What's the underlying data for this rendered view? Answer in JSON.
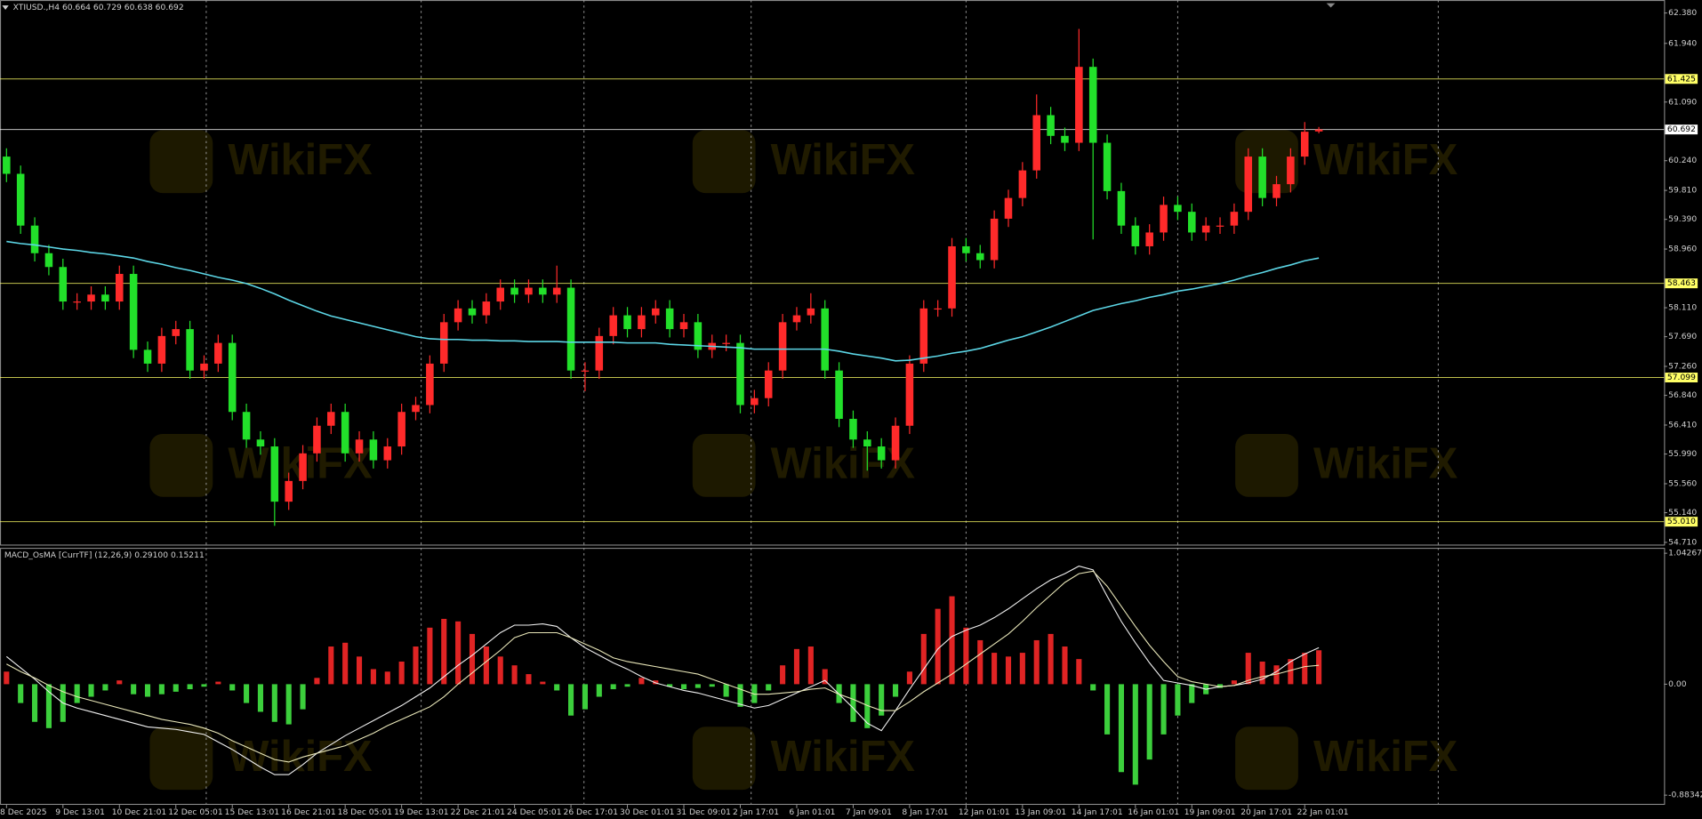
{
  "watermark": "WikiFX",
  "chart_data": [
    {
      "type": "candlestick",
      "title": "XTIUSD.,H4  60.664 60.729 60.638 60.692",
      "up_color": "#ff2a2a",
      "down_color": "#22e02a",
      "categories": [
        "8 Dec 2025",
        null,
        null,
        null,
        "9 Dec 13:01",
        null,
        null,
        null,
        "10 Dec 21:01",
        null,
        null,
        null,
        "12 Dec 05:01",
        null,
        null,
        null,
        "15 Dec 13:01",
        null,
        null,
        null,
        "16 Dec 21:01",
        null,
        null,
        null,
        "18 Dec 05:01",
        null,
        null,
        null,
        "19 Dec 13:01",
        null,
        null,
        null,
        "22 Dec 21:01",
        null,
        null,
        null,
        "24 Dec 05:01",
        null,
        null,
        null,
        "26 Dec 17:01",
        null,
        null,
        null,
        "30 Dec 01:01",
        null,
        null,
        null,
        "31 Dec 09:01",
        null,
        null,
        null,
        "2 Jan 17:01",
        null,
        null,
        null,
        "6 Jan 01:01",
        null,
        null,
        null,
        "7 Jan 09:01",
        null,
        null,
        null,
        "8 Jan 17:01",
        null,
        null,
        null,
        "12 Jan 01:01",
        null,
        null,
        null,
        "13 Jan 09:01",
        null,
        null,
        null,
        "14 Jan 17:01",
        null,
        null,
        null,
        "16 Jan 01:01",
        null,
        null,
        null,
        "19 Jan 09:01",
        null,
        null,
        null,
        "20 Jan 17:01",
        null,
        null,
        null,
        "22 Jan 01:01",
        null
      ],
      "open": [
        60.3,
        60.05,
        59.3,
        58.9,
        58.7,
        58.2,
        58.2,
        58.3,
        58.2,
        58.6,
        57.5,
        57.3,
        57.7,
        57.8,
        57.2,
        57.3,
        57.6,
        56.6,
        56.2,
        56.1,
        55.3,
        55.6,
        56.0,
        56.4,
        56.6,
        56.0,
        56.2,
        55.9,
        56.1,
        56.6,
        56.7,
        57.3,
        57.9,
        58.1,
        58.0,
        58.2,
        58.4,
        58.3,
        58.4,
        58.3,
        58.4,
        57.2,
        57.2,
        57.7,
        58.0,
        57.8,
        58.0,
        58.1,
        57.8,
        57.9,
        57.5,
        57.6,
        57.6,
        56.7,
        56.8,
        57.2,
        57.9,
        58.0,
        58.1,
        57.2,
        56.5,
        56.2,
        56.1,
        55.9,
        56.4,
        57.3,
        58.1,
        58.1,
        59.0,
        58.9,
        58.8,
        59.4,
        59.7,
        60.1,
        60.9,
        60.6,
        60.5,
        61.6,
        60.5,
        59.8,
        59.3,
        59.0,
        59.2,
        59.6,
        59.5,
        59.2,
        59.3,
        59.3,
        59.5,
        60.3,
        59.7,
        59.9,
        60.3,
        60.664
      ],
      "high": [
        60.42,
        60.17,
        59.42,
        59.02,
        58.82,
        58.32,
        58.42,
        58.42,
        58.72,
        58.72,
        57.62,
        57.82,
        57.92,
        57.92,
        57.42,
        57.72,
        57.72,
        56.72,
        56.32,
        56.22,
        55.72,
        56.12,
        56.52,
        56.72,
        56.72,
        56.32,
        56.32,
        56.22,
        56.72,
        56.82,
        57.42,
        58.02,
        58.22,
        58.22,
        58.32,
        58.52,
        58.52,
        58.52,
        58.52,
        58.72,
        58.52,
        57.32,
        57.82,
        58.12,
        58.12,
        58.12,
        58.22,
        58.22,
        58.02,
        58.02,
        57.72,
        57.72,
        57.72,
        56.92,
        57.32,
        58.02,
        58.12,
        58.32,
        58.22,
        57.32,
        56.62,
        56.32,
        56.22,
        56.52,
        57.42,
        58.22,
        58.22,
        59.12,
        59.12,
        59.02,
        59.52,
        59.82,
        60.22,
        61.2,
        61.02,
        60.72,
        62.15,
        61.72,
        60.62,
        59.92,
        59.42,
        59.32,
        59.72,
        59.72,
        59.62,
        59.42,
        59.42,
        59.62,
        60.42,
        60.42,
        60.02,
        60.42,
        60.8,
        60.729
      ],
      "low": [
        59.93,
        59.18,
        58.78,
        58.58,
        58.08,
        58.08,
        58.08,
        58.08,
        58.08,
        57.38,
        57.18,
        57.18,
        57.58,
        57.08,
        57.08,
        57.18,
        56.48,
        56.08,
        55.98,
        54.95,
        55.18,
        55.48,
        55.88,
        56.28,
        55.88,
        55.88,
        55.78,
        55.78,
        55.98,
        56.48,
        56.58,
        57.18,
        57.78,
        57.88,
        57.88,
        58.08,
        58.18,
        58.18,
        58.18,
        58.18,
        57.08,
        56.9,
        57.08,
        57.58,
        57.68,
        57.68,
        57.88,
        57.68,
        57.68,
        57.38,
        57.38,
        57.48,
        56.58,
        56.58,
        56.68,
        57.08,
        57.78,
        57.88,
        57.08,
        56.38,
        56.08,
        55.75,
        55.78,
        55.78,
        56.28,
        57.18,
        57.98,
        57.98,
        58.78,
        58.68,
        58.68,
        59.28,
        59.58,
        59.98,
        60.48,
        60.38,
        60.38,
        59.1,
        59.68,
        59.18,
        58.88,
        58.88,
        59.08,
        59.38,
        59.08,
        59.08,
        59.18,
        59.18,
        59.38,
        59.58,
        59.58,
        59.78,
        60.18,
        60.638
      ],
      "close": [
        60.05,
        59.3,
        58.9,
        58.7,
        58.2,
        58.2,
        58.3,
        58.2,
        58.6,
        57.5,
        57.3,
        57.7,
        57.8,
        57.2,
        57.3,
        57.6,
        56.6,
        56.2,
        56.1,
        55.3,
        55.6,
        56.0,
        56.4,
        56.6,
        56.0,
        56.2,
        55.9,
        56.1,
        56.6,
        56.7,
        57.3,
        57.9,
        58.1,
        58.0,
        58.2,
        58.4,
        58.3,
        58.4,
        58.3,
        58.4,
        57.2,
        57.2,
        57.7,
        58.0,
        57.8,
        58.0,
        58.1,
        57.8,
        57.9,
        57.5,
        57.6,
        57.6,
        56.7,
        56.8,
        57.2,
        57.9,
        58.0,
        58.1,
        57.2,
        56.5,
        56.2,
        56.1,
        55.9,
        56.4,
        57.3,
        58.1,
        58.1,
        59.0,
        58.9,
        58.8,
        59.4,
        59.7,
        60.1,
        60.9,
        60.6,
        60.5,
        61.6,
        60.5,
        59.8,
        59.3,
        59.0,
        59.2,
        59.6,
        59.5,
        59.2,
        59.3,
        59.3,
        59.5,
        60.3,
        59.7,
        59.9,
        60.3,
        60.66,
        60.692
      ],
      "overlay": {
        "color": "#5cd6e6",
        "values": [
          59.07,
          59.04,
          59.02,
          58.99,
          58.96,
          58.94,
          58.91,
          58.89,
          58.86,
          58.83,
          58.78,
          58.74,
          58.69,
          58.65,
          58.6,
          58.55,
          58.51,
          58.46,
          58.39,
          58.31,
          58.22,
          58.14,
          58.06,
          57.99,
          57.94,
          57.89,
          57.84,
          57.79,
          57.74,
          57.69,
          57.66,
          57.65,
          57.65,
          57.64,
          57.64,
          57.63,
          57.63,
          57.62,
          57.62,
          57.62,
          57.61,
          57.61,
          57.61,
          57.61,
          57.6,
          57.6,
          57.6,
          57.58,
          57.57,
          57.56,
          57.55,
          57.54,
          57.53,
          57.51,
          57.51,
          57.51,
          57.51,
          57.51,
          57.51,
          57.48,
          57.44,
          57.41,
          57.38,
          57.34,
          57.35,
          57.38,
          57.41,
          57.45,
          57.48,
          57.52,
          57.58,
          57.64,
          57.69,
          57.76,
          57.83,
          57.91,
          57.99,
          58.07,
          58.12,
          58.17,
          58.21,
          58.26,
          58.3,
          58.35,
          58.38,
          58.42,
          58.46,
          58.51,
          58.57,
          58.62,
          58.68,
          58.73,
          58.79,
          58.83
        ]
      },
      "levels": [
        {
          "value": 61.425,
          "label": "61.425",
          "color": "#ffff66"
        },
        {
          "value": 60.692,
          "label": "60.692",
          "color": "#ffffff"
        },
        {
          "value": 58.463,
          "label": "58.463",
          "color": "#ffff66"
        },
        {
          "value": 57.099,
          "label": "57.099",
          "color": "#ffff66"
        },
        {
          "value": 55.01,
          "label": "55.010",
          "color": "#ffff66"
        }
      ],
      "ylim": [
        54.71,
        62.38
      ],
      "yticks": [
        {
          "value": 62.38,
          "label": "62.380"
        },
        {
          "value": 61.94,
          "label": "61.940"
        },
        {
          "value": 61.09,
          "label": "61.090"
        },
        {
          "value": 60.24,
          "label": "60.240"
        },
        {
          "value": 59.81,
          "label": "59.810"
        },
        {
          "value": 59.39,
          "label": "59.390"
        },
        {
          "value": 58.96,
          "label": "58.960"
        },
        {
          "value": 58.11,
          "label": "58.110"
        },
        {
          "value": 57.69,
          "label": "57.690"
        },
        {
          "value": 57.26,
          "label": "57.260"
        },
        {
          "value": 56.84,
          "label": "56.840"
        },
        {
          "value": 56.41,
          "label": "56.410"
        },
        {
          "value": 55.99,
          "label": "55.990"
        },
        {
          "value": 55.56,
          "label": "55.560"
        },
        {
          "value": 55.14,
          "label": "55.140"
        },
        {
          "value": 54.71,
          "label": "54.710"
        }
      ]
    },
    {
      "type": "macd",
      "title": "MACD_OsMA [CurrTF] (12,26,9) 0.29100 0.15211",
      "histogram": {
        "up_color": "#e02424",
        "down_color": "#3ccf3c",
        "values": [
          0.1,
          -0.15,
          -0.3,
          -0.35,
          -0.3,
          -0.15,
          -0.1,
          -0.05,
          0.03,
          -0.08,
          -0.1,
          -0.08,
          -0.06,
          -0.04,
          -0.02,
          0.02,
          -0.05,
          -0.15,
          -0.22,
          -0.3,
          -0.32,
          -0.2,
          0.05,
          0.3,
          0.33,
          0.22,
          0.12,
          0.1,
          0.18,
          0.3,
          0.45,
          0.52,
          0.5,
          0.4,
          0.3,
          0.22,
          0.15,
          0.08,
          0.02,
          -0.05,
          -0.25,
          -0.2,
          -0.1,
          -0.04,
          -0.02,
          0.05,
          0.03,
          -0.02,
          -0.04,
          -0.03,
          -0.02,
          -0.1,
          -0.18,
          -0.15,
          -0.05,
          0.15,
          0.28,
          0.3,
          0.12,
          -0.15,
          -0.3,
          -0.35,
          -0.25,
          -0.1,
          0.1,
          0.4,
          0.6,
          0.7,
          0.45,
          0.35,
          0.25,
          0.22,
          0.25,
          0.35,
          0.4,
          0.3,
          0.2,
          -0.05,
          -0.4,
          -0.7,
          -0.8,
          -0.6,
          -0.4,
          -0.25,
          -0.15,
          -0.08,
          -0.03,
          0.03,
          0.25,
          0.18,
          0.15,
          0.2,
          0.25,
          0.27
        ]
      },
      "lines": [
        {
          "color": "#f0f0f0",
          "values": [
            0.22,
            0.13,
            0.04,
            -0.06,
            -0.15,
            -0.19,
            -0.22,
            -0.25,
            -0.28,
            -0.31,
            -0.34,
            -0.35,
            -0.36,
            -0.38,
            -0.4,
            -0.46,
            -0.52,
            -0.59,
            -0.66,
            -0.72,
            -0.72,
            -0.64,
            -0.55,
            -0.48,
            -0.41,
            -0.35,
            -0.29,
            -0.23,
            -0.17,
            -0.1,
            -0.03,
            0.06,
            0.15,
            0.23,
            0.32,
            0.41,
            0.47,
            0.47,
            0.48,
            0.46,
            0.37,
            0.29,
            0.23,
            0.17,
            0.12,
            0.06,
            0.01,
            -0.02,
            -0.05,
            -0.07,
            -0.1,
            -0.13,
            -0.16,
            -0.19,
            -0.17,
            -0.12,
            -0.07,
            -0.02,
            0.03,
            -0.08,
            -0.19,
            -0.31,
            -0.37,
            -0.21,
            -0.04,
            0.12,
            0.28,
            0.38,
            0.43,
            0.47,
            0.53,
            0.6,
            0.68,
            0.76,
            0.83,
            0.88,
            0.94,
            0.91,
            0.7,
            0.5,
            0.33,
            0.17,
            0.03,
            0.01,
            -0.01,
            -0.04,
            -0.02,
            -0.01,
            0.01,
            0.04,
            0.1,
            0.18,
            0.24,
            0.29
          ]
        },
        {
          "color": "#e8e6b8",
          "values": [
            0.16,
            0.1,
            0.05,
            -0.01,
            -0.06,
            -0.1,
            -0.13,
            -0.16,
            -0.19,
            -0.22,
            -0.25,
            -0.28,
            -0.3,
            -0.32,
            -0.35,
            -0.39,
            -0.45,
            -0.5,
            -0.55,
            -0.6,
            -0.62,
            -0.58,
            -0.55,
            -0.52,
            -0.49,
            -0.44,
            -0.39,
            -0.33,
            -0.28,
            -0.23,
            -0.18,
            -0.1,
            0.0,
            0.09,
            0.18,
            0.27,
            0.37,
            0.41,
            0.41,
            0.41,
            0.37,
            0.32,
            0.27,
            0.21,
            0.18,
            0.16,
            0.14,
            0.12,
            0.1,
            0.08,
            0.04,
            0.0,
            -0.04,
            -0.08,
            -0.08,
            -0.07,
            -0.06,
            -0.04,
            -0.03,
            -0.08,
            -0.12,
            -0.17,
            -0.21,
            -0.21,
            -0.14,
            -0.06,
            0.01,
            0.08,
            0.16,
            0.24,
            0.32,
            0.4,
            0.5,
            0.61,
            0.71,
            0.81,
            0.88,
            0.9,
            0.78,
            0.62,
            0.46,
            0.31,
            0.18,
            0.06,
            0.02,
            0.0,
            -0.02,
            -0.01,
            0.03,
            0.06,
            0.08,
            0.11,
            0.14,
            0.15
          ]
        }
      ],
      "ylim": [
        -0.88342,
        1.04267
      ],
      "yticks": [
        1.04267,
        {
          "value": 0,
          "label": "0.00"
        },
        -0.88342
      ]
    }
  ]
}
